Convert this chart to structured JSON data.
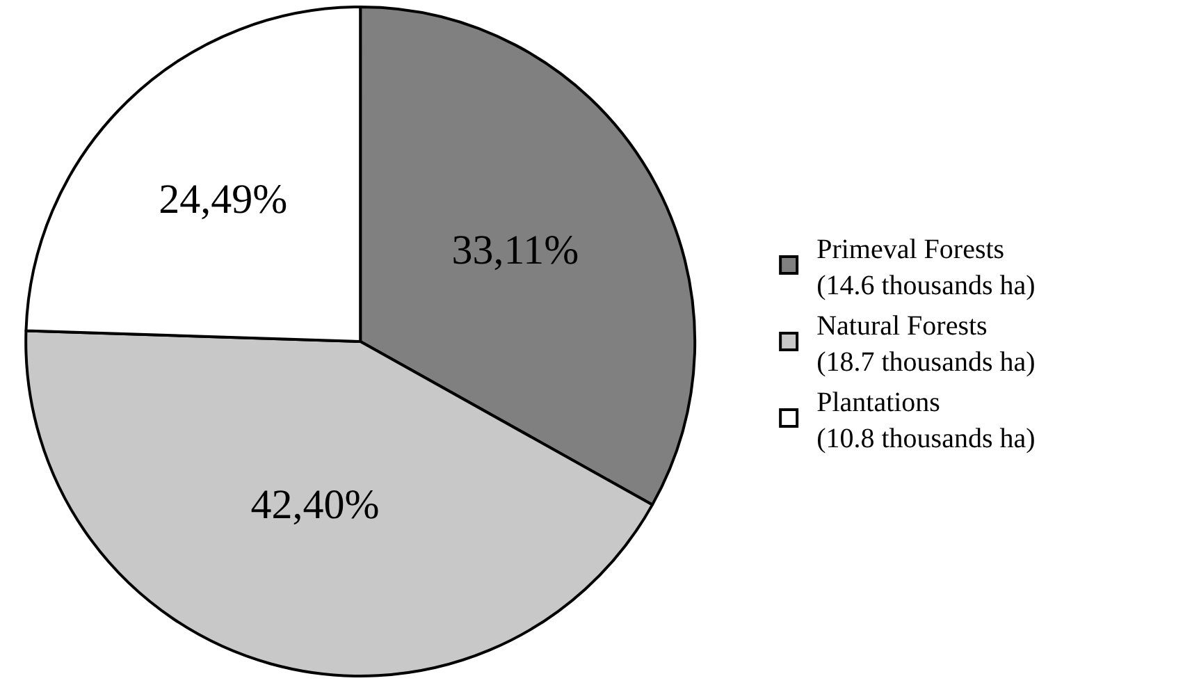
{
  "chart_data": {
    "type": "pie",
    "categories": [
      "Primeval Forests\n(14.6 thousands ha)",
      "Natural Forests\n(18.7 thousands ha)",
      "Plantations\n(10.8 thousands ha)"
    ],
    "values": [
      33.11,
      42.4,
      24.49
    ],
    "value_labels": [
      "33,11%",
      "42,40%",
      "24,49%"
    ],
    "colors": [
      "#808080",
      "#c8c8c8",
      "#ffffff"
    ],
    "legend": "right"
  }
}
